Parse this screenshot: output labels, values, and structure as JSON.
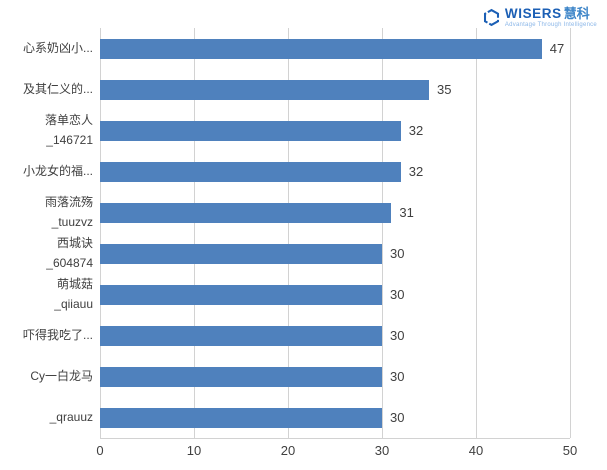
{
  "logo": {
    "brand": "WISERS",
    "brand_cn": "慧科",
    "tagline": "Advantage Through Intelligence",
    "brand_color": "#1b5fb5",
    "brand_cn_color": "#3d85c8",
    "tagline_color": "#8ab6e8"
  },
  "chart_data": {
    "type": "bar",
    "orientation": "horizontal",
    "title": "",
    "xlabel": "",
    "ylabel": "",
    "legend": "none",
    "grid": "vertical",
    "categories": [
      "心系奶凶小...",
      "及其仁义的...",
      "落单恋人\n_146721",
      "小龙女的福...",
      "雨落流殇\n_tuuzvz",
      "西城诀\n_604874",
      "萌城菇\n_qiiauu",
      "吓得我吃了...",
      "Cy一白龙马",
      "_qrauuz"
    ],
    "values": [
      47,
      35,
      32,
      32,
      31,
      30,
      30,
      30,
      30,
      30
    ],
    "xlim": [
      0,
      50
    ],
    "x_ticks": [
      0,
      10,
      20,
      30,
      40,
      50
    ],
    "bar_color": "#4f81bd",
    "gridline_color": "#d2d2d2",
    "category_label_color": "#3f3f3f",
    "value_label_color": "#404040",
    "tick_label_color": "#404040"
  }
}
